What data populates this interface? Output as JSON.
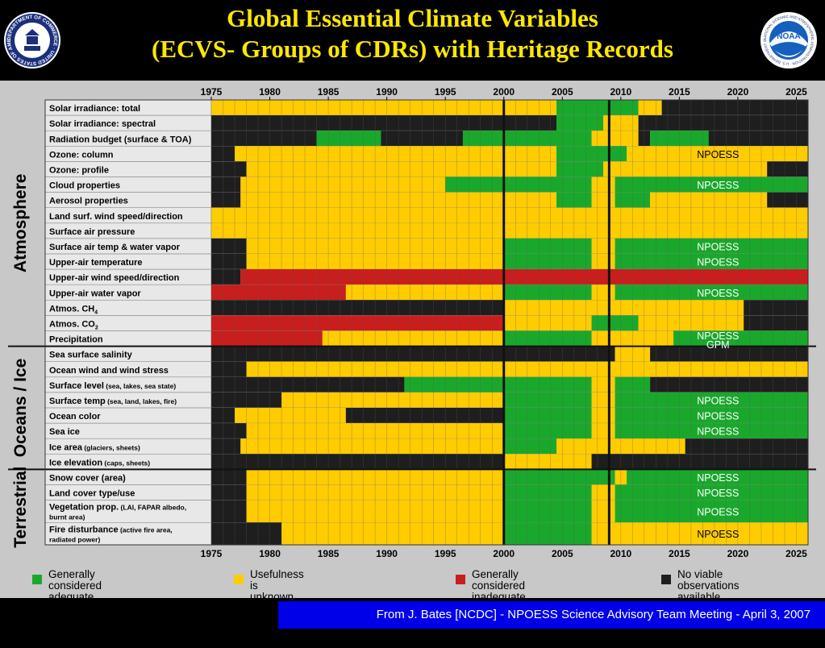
{
  "title_line1": "Global Essential Climate Variables",
  "title_line2": "(ECVS- Groups of CDRs) with Heritage Records",
  "seals": [
    {
      "name": "department-of-commerce-seal",
      "text": "DEPARTMENT OF COMMERCE · UNITED STATES OF AMERICA"
    },
    {
      "name": "noaa-logo",
      "text": "NOAA",
      "ring_text": "NATIONAL OCEANIC AND ATMOSPHERIC ADMINISTRATION · U.S. DEPARTMENT OF COMMERCE"
    }
  ],
  "colors": {
    "green": "#1aa82c",
    "yellow": "#ffcc00",
    "red": "#c81e1e",
    "black": "#1e1e1e",
    "title": "#ffe800",
    "footer_bg": "#0000e8",
    "panel_bg": "#c8c8c8"
  },
  "chart_data": {
    "type": "timeline-grid",
    "title": "Global Essential Climate Variables (ECVS- Groups of CDRs) with Heritage Records",
    "x_range": [
      1975,
      2026
    ],
    "x_ticks": [
      1975,
      1980,
      1985,
      1990,
      1995,
      2000,
      2005,
      2010,
      2015,
      2020,
      2025
    ],
    "divider_years": [
      2000,
      2009
    ],
    "categories": {
      "G": "Generally considered adequate for developing CDRs",
      "Y": "Usefulness is unknown, application-dependent, or access-dependent",
      "R": "Generally considered inadequate for developing CDRs",
      "B": "No viable observations available"
    },
    "groups": [
      {
        "name": "Atmosphere",
        "rows": [
          {
            "label": "Solar irradiance: total",
            "segments": [
              [
                1975,
                2004.5,
                "Y"
              ],
              [
                2004.5,
                2011.5,
                "G"
              ],
              [
                2011.5,
                2013.5,
                "Y"
              ],
              [
                2013.5,
                2026,
                "B"
              ]
            ]
          },
          {
            "label": "Solar irradiance: spectral",
            "segments": [
              [
                1975,
                2004.5,
                "B"
              ],
              [
                2004.5,
                2008.5,
                "G"
              ],
              [
                2008.5,
                2011.5,
                "Y"
              ],
              [
                2011.5,
                2026,
                "B"
              ]
            ]
          },
          {
            "label": "Radiation budget (surface & TOA)",
            "segments": [
              [
                1975,
                1984,
                "B"
              ],
              [
                1984,
                1989.5,
                "G"
              ],
              [
                1989.5,
                1996.5,
                "B"
              ],
              [
                1996.5,
                2007.5,
                "G"
              ],
              [
                2007.5,
                2011.5,
                "Y"
              ],
              [
                2011.5,
                2012.5,
                "B"
              ],
              [
                2012.5,
                2017.5,
                "G"
              ],
              [
                2017.5,
                2026,
                "B"
              ]
            ]
          },
          {
            "label": "Ozone: column",
            "segments": [
              [
                1975,
                1977,
                "B"
              ],
              [
                1977,
                2004.5,
                "Y"
              ],
              [
                2004.5,
                2010.5,
                "G"
              ],
              [
                2010.5,
                2026,
                "Y"
              ]
            ],
            "text": "NPOESS"
          },
          {
            "label": "Ozone: profile",
            "segments": [
              [
                1975,
                1978,
                "B"
              ],
              [
                1978,
                2004.5,
                "Y"
              ],
              [
                2004.5,
                2008.5,
                "G"
              ],
              [
                2008.5,
                2022.5,
                "Y"
              ],
              [
                2022.5,
                2026,
                "B"
              ]
            ]
          },
          {
            "label": "Cloud properties",
            "segments": [
              [
                1975,
                1977.5,
                "B"
              ],
              [
                1977.5,
                1995,
                "Y"
              ],
              [
                1995,
                2007.5,
                "G"
              ],
              [
                2007.5,
                2009.5,
                "Y"
              ],
              [
                2009.5,
                2026,
                "G"
              ]
            ],
            "text": "NPOESS"
          },
          {
            "label": "Aerosol properties",
            "segments": [
              [
                1975,
                1977.5,
                "B"
              ],
              [
                1977.5,
                2004.5,
                "Y"
              ],
              [
                2004.5,
                2007.5,
                "G"
              ],
              [
                2007.5,
                2009.5,
                "Y"
              ],
              [
                2009.5,
                2012.5,
                "G"
              ],
              [
                2012.5,
                2022.5,
                "Y"
              ],
              [
                2022.5,
                2026,
                "B"
              ]
            ]
          },
          {
            "label": "Land surf. wind speed/direction",
            "segments": [
              [
                1975,
                2026,
                "Y"
              ]
            ]
          },
          {
            "label": "Surface air pressure",
            "segments": [
              [
                1975,
                2026,
                "Y"
              ]
            ]
          },
          {
            "label": "Surface air temp & water vapor",
            "segments": [
              [
                1975,
                1978,
                "B"
              ],
              [
                1978,
                2000,
                "Y"
              ],
              [
                2000,
                2007.5,
                "G"
              ],
              [
                2007.5,
                2009.5,
                "Y"
              ],
              [
                2009.5,
                2026,
                "G"
              ]
            ],
            "text": "NPOESS"
          },
          {
            "label": "Upper-air temperature",
            "segments": [
              [
                1975,
                1978,
                "B"
              ],
              [
                1978,
                2000,
                "Y"
              ],
              [
                2000,
                2007.5,
                "G"
              ],
              [
                2007.5,
                2009.5,
                "Y"
              ],
              [
                2009.5,
                2026,
                "G"
              ]
            ],
            "text": "NPOESS"
          },
          {
            "label": "Upper-air wind speed/direction",
            "segments": [
              [
                1975,
                1977.5,
                "B"
              ],
              [
                1977.5,
                2026,
                "R"
              ]
            ]
          },
          {
            "label": "Upper-air water vapor",
            "segments": [
              [
                1975,
                1986.5,
                "R"
              ],
              [
                1986.5,
                2000,
                "Y"
              ],
              [
                2000,
                2007.5,
                "G"
              ],
              [
                2007.5,
                2009.5,
                "Y"
              ],
              [
                2009.5,
                2026,
                "G"
              ]
            ],
            "text": "NPOESS"
          },
          {
            "label": "Atmos. CH",
            "sub": "4",
            "segments": [
              [
                1975,
                2000,
                "B"
              ],
              [
                2000,
                2020.5,
                "Y"
              ],
              [
                2020.5,
                2026,
                "B"
              ]
            ]
          },
          {
            "label": "Atmos. CO",
            "sub": "2",
            "segments": [
              [
                1975,
                2000,
                "R"
              ],
              [
                2000,
                2007.5,
                "Y"
              ],
              [
                2007.5,
                2011.5,
                "G"
              ],
              [
                2011.5,
                2020.5,
                "Y"
              ],
              [
                2020.5,
                2026,
                "B"
              ]
            ]
          },
          {
            "label": "Precipitation",
            "segments": [
              [
                1975,
                1984.5,
                "R"
              ],
              [
                1984.5,
                2000,
                "Y"
              ],
              [
                2000,
                2007.5,
                "G"
              ],
              [
                2007.5,
                2014.5,
                "Y"
              ],
              [
                2014.5,
                2026,
                "G"
              ]
            ],
            "text": "NPOESS",
            "text2": "GPM"
          }
        ]
      },
      {
        "name": "Oceans / Ice",
        "rows": [
          {
            "label": "Sea surface salinity",
            "segments": [
              [
                1975,
                2009.5,
                "B"
              ],
              [
                2009.5,
                2012.5,
                "Y"
              ],
              [
                2012.5,
                2026,
                "B"
              ]
            ]
          },
          {
            "label": "Ocean wind and wind stress",
            "segments": [
              [
                1975,
                1978,
                "B"
              ],
              [
                1978,
                2026,
                "Y"
              ]
            ]
          },
          {
            "label": "Surface level",
            "label_small": "(sea, lakes, sea state)",
            "segments": [
              [
                1975,
                1991.5,
                "B"
              ],
              [
                1991.5,
                2000,
                "G"
              ],
              [
                2000,
                2007.5,
                "G"
              ],
              [
                2007.5,
                2009.5,
                "Y"
              ],
              [
                2009.5,
                2012.5,
                "G"
              ],
              [
                2012.5,
                2026,
                "B"
              ]
            ]
          },
          {
            "label": "Surface temp",
            "label_small": "(sea, land, lakes, fire)",
            "segments": [
              [
                1975,
                1981,
                "B"
              ],
              [
                1981,
                2000,
                "Y"
              ],
              [
                2000,
                2007.5,
                "G"
              ],
              [
                2007.5,
                2009.5,
                "Y"
              ],
              [
                2009.5,
                2026,
                "G"
              ]
            ],
            "text": "NPOESS"
          },
          {
            "label": "Ocean color",
            "segments": [
              [
                1975,
                1977,
                "B"
              ],
              [
                1977,
                1986.5,
                "Y"
              ],
              [
                1986.5,
                2000,
                "B"
              ],
              [
                2000,
                2007.5,
                "G"
              ],
              [
                2007.5,
                2009.5,
                "Y"
              ],
              [
                2009.5,
                2026,
                "G"
              ]
            ],
            "text": "NPOESS"
          },
          {
            "label": "Sea ice",
            "segments": [
              [
                1975,
                1978,
                "B"
              ],
              [
                1978,
                2000,
                "Y"
              ],
              [
                2000,
                2007.5,
                "G"
              ],
              [
                2007.5,
                2009.5,
                "Y"
              ],
              [
                2009.5,
                2026,
                "G"
              ]
            ],
            "text": "NPOESS"
          },
          {
            "label": "Ice area",
            "label_small": "(glaciers, sheets)",
            "segments": [
              [
                1975,
                1977.5,
                "B"
              ],
              [
                1977.5,
                2000,
                "Y"
              ],
              [
                2000,
                2004.5,
                "G"
              ],
              [
                2004.5,
                2015.5,
                "Y"
              ],
              [
                2015.5,
                2026,
                "B"
              ]
            ]
          },
          {
            "label": "Ice elevation",
            "label_small": "(caps, sheets)",
            "segments": [
              [
                1975,
                2000,
                "B"
              ],
              [
                2000,
                2007.5,
                "Y"
              ],
              [
                2007.5,
                2026,
                "B"
              ]
            ]
          }
        ]
      },
      {
        "name": "Terrestrial",
        "rows": [
          {
            "label": "Snow cover (area)",
            "segments": [
              [
                1975,
                1978,
                "B"
              ],
              [
                1978,
                2000,
                "Y"
              ],
              [
                2000,
                2009.5,
                "G"
              ],
              [
                2009.5,
                2010.5,
                "Y"
              ],
              [
                2010.5,
                2026,
                "G"
              ]
            ],
            "text": "NPOESS"
          },
          {
            "label": "Land cover type/use",
            "segments": [
              [
                1975,
                1978,
                "B"
              ],
              [
                1978,
                2000,
                "Y"
              ],
              [
                2000,
                2007.5,
                "G"
              ],
              [
                2007.5,
                2009.5,
                "Y"
              ],
              [
                2009.5,
                2026,
                "G"
              ]
            ],
            "text": "NPOESS"
          },
          {
            "label": "Vegetation prop.",
            "label_small": "(LAI, FAPAR albedo,",
            "label_line2": "burnt area)",
            "tall": true,
            "segments": [
              [
                1975,
                1978,
                "B"
              ],
              [
                1978,
                2000,
                "Y"
              ],
              [
                2000,
                2007.5,
                "G"
              ],
              [
                2007.5,
                2009.5,
                "Y"
              ],
              [
                2009.5,
                2026,
                "G"
              ]
            ],
            "text": "NPOESS"
          },
          {
            "label": "Fire disturbance",
            "label_small": "(active fire area,",
            "label_line2": "radiated power)",
            "tall": true,
            "segments": [
              [
                1975,
                1978,
                "B"
              ],
              [
                1978,
                1981,
                "B"
              ],
              [
                1981,
                2000,
                "Y"
              ],
              [
                2000,
                2007.5,
                "G"
              ],
              [
                2007.5,
                2026,
                "Y"
              ]
            ],
            "text": "NPOESS"
          }
        ]
      }
    ]
  },
  "legend": [
    {
      "key": "G",
      "text": "Generally considered adequate\nfor developing CDRs"
    },
    {
      "key": "Y",
      "text": "Usefulness is unknown, application-\ndependent, or access-dependent"
    },
    {
      "key": "R",
      "text": "Generally considered inadequate\nfor developing CDRs"
    },
    {
      "key": "B",
      "text": "No viable\nobservations available"
    }
  ],
  "footer": "From J. Bates [NCDC] - NPOESS Science Advisory Team  Meeting -  April 3, 2007"
}
